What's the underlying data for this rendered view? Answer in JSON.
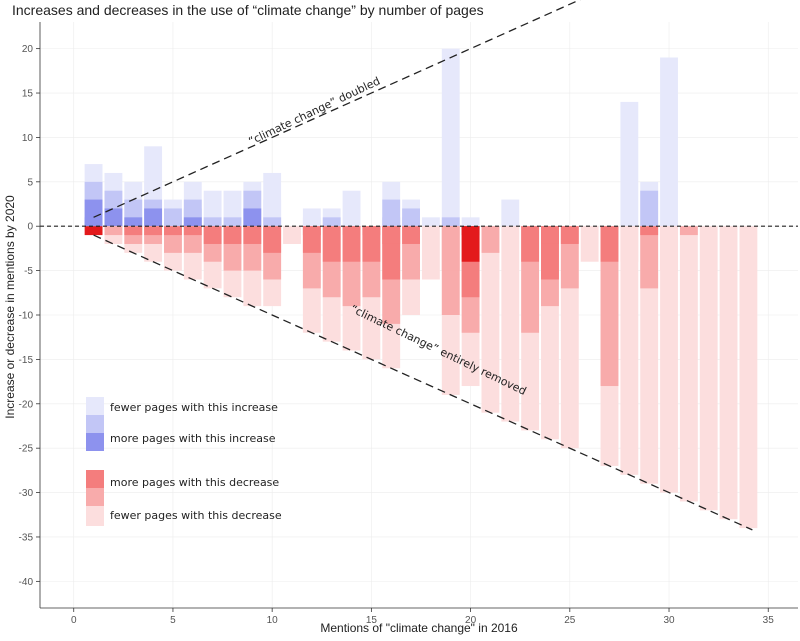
{
  "chart_data": {
    "type": "bar",
    "title": "Increases and decreases in the use of “climate change” by number of pages",
    "xlabel": "Mentions of \"climate change\" in 2016",
    "ylabel": "Increase or decrease in mentions by 2020",
    "xlim": [
      -1.7,
      36.5
    ],
    "ylim": [
      -43,
      23
    ],
    "x_ticks": [
      0,
      5,
      10,
      15,
      20,
      25,
      30,
      35
    ],
    "y_ticks": [
      20,
      15,
      10,
      5,
      0,
      -5,
      -10,
      -15,
      -20,
      -25,
      -30,
      -35,
      -40
    ],
    "colors": {
      "increase_light": "#e6e8fb",
      "increase_mid": "#c2c6f6",
      "increase_dark": "#8d92ee",
      "decrease_dark": "#f47d7d",
      "decrease_mid": "#f8abab",
      "decrease_light": "#fcdede",
      "first_decrease": "#e31a1c",
      "grid": "#ececec"
    },
    "increase_bars": [
      {
        "x": 1,
        "levels": [
          {
            "v": 7,
            "s": 0
          },
          {
            "v": 5,
            "s": 1
          },
          {
            "v": 3,
            "s": 2
          },
          {
            "v": 1,
            "s": 2
          }
        ]
      },
      {
        "x": 2,
        "levels": [
          {
            "v": 6,
            "s": 0
          },
          {
            "v": 4,
            "s": 1
          },
          {
            "v": 2,
            "s": 2
          }
        ]
      },
      {
        "x": 3,
        "levels": [
          {
            "v": 5,
            "s": 0
          },
          {
            "v": 3,
            "s": 1
          },
          {
            "v": 1,
            "s": 2
          }
        ]
      },
      {
        "x": 4,
        "levels": [
          {
            "v": 9,
            "s": 0
          },
          {
            "v": 5,
            "s": 0
          },
          {
            "v": 3,
            "s": 1
          },
          {
            "v": 2,
            "s": 2
          }
        ]
      },
      {
        "x": 5,
        "levels": [
          {
            "v": 3,
            "s": 0
          },
          {
            "v": 2,
            "s": 1
          },
          {
            "v": 1,
            "s": 1
          }
        ]
      },
      {
        "x": 6,
        "levels": [
          {
            "v": 5,
            "s": 0
          },
          {
            "v": 3,
            "s": 1
          },
          {
            "v": 2,
            "s": 1
          },
          {
            "v": 1,
            "s": 2
          }
        ]
      },
      {
        "x": 7,
        "levels": [
          {
            "v": 4,
            "s": 0
          },
          {
            "v": 1,
            "s": 1
          }
        ]
      },
      {
        "x": 8,
        "levels": [
          {
            "v": 4,
            "s": 0
          },
          {
            "v": 1,
            "s": 1
          }
        ]
      },
      {
        "x": 9,
        "levels": [
          {
            "v": 5,
            "s": 0
          },
          {
            "v": 4,
            "s": 1
          },
          {
            "v": 2,
            "s": 2
          }
        ]
      },
      {
        "x": 10,
        "levels": [
          {
            "v": 6,
            "s": 0
          },
          {
            "v": 3,
            "s": 0
          },
          {
            "v": 1,
            "s": 1
          }
        ]
      },
      {
        "x": 12,
        "levels": [
          {
            "v": 2,
            "s": 0
          },
          {
            "v": 1,
            "s": 0
          }
        ]
      },
      {
        "x": 13,
        "levels": [
          {
            "v": 2,
            "s": 0
          },
          {
            "v": 1,
            "s": 1
          }
        ]
      },
      {
        "x": 14,
        "levels": [
          {
            "v": 4,
            "s": 0
          }
        ]
      },
      {
        "x": 16,
        "levels": [
          {
            "v": 5,
            "s": 0
          },
          {
            "v": 3,
            "s": 1
          },
          {
            "v": 1,
            "s": 1
          }
        ]
      },
      {
        "x": 17,
        "levels": [
          {
            "v": 3,
            "s": 0
          },
          {
            "v": 2,
            "s": 1
          },
          {
            "v": 1,
            "s": 1
          }
        ]
      },
      {
        "x": 18,
        "levels": [
          {
            "v": 1,
            "s": 0
          }
        ]
      },
      {
        "x": 19,
        "levels": [
          {
            "v": 20,
            "s": 0
          },
          {
            "v": 1,
            "s": 1
          }
        ]
      },
      {
        "x": 20,
        "levels": [
          {
            "v": 1,
            "s": 0
          }
        ]
      },
      {
        "x": 22,
        "levels": [
          {
            "v": 3,
            "s": 0
          }
        ]
      },
      {
        "x": 28,
        "levels": [
          {
            "v": 14,
            "s": 0
          }
        ]
      },
      {
        "x": 29,
        "levels": [
          {
            "v": 5,
            "s": 0
          },
          {
            "v": 4,
            "s": 1
          }
        ]
      },
      {
        "x": 30,
        "levels": [
          {
            "v": 19,
            "s": 0
          }
        ]
      }
    ],
    "decrease_bars": [
      {
        "x": 1,
        "levels": [
          {
            "v": -1,
            "s": 3
          }
        ]
      },
      {
        "x": 2,
        "levels": [
          {
            "v": -2,
            "s": 0
          },
          {
            "v": -1,
            "s": 1
          }
        ]
      },
      {
        "x": 3,
        "levels": [
          {
            "v": -3,
            "s": 0
          },
          {
            "v": -2,
            "s": 1
          },
          {
            "v": -1,
            "s": 2
          }
        ]
      },
      {
        "x": 4,
        "levels": [
          {
            "v": -4,
            "s": 0
          },
          {
            "v": -2,
            "s": 1
          },
          {
            "v": -1,
            "s": 2
          }
        ]
      },
      {
        "x": 5,
        "levels": [
          {
            "v": -5,
            "s": 0
          },
          {
            "v": -3,
            "s": 1
          },
          {
            "v": -1,
            "s": 2
          }
        ]
      },
      {
        "x": 6,
        "levels": [
          {
            "v": -6,
            "s": 0
          },
          {
            "v": -3,
            "s": 1
          },
          {
            "v": -1,
            "s": 2
          }
        ]
      },
      {
        "x": 7,
        "levels": [
          {
            "v": -7,
            "s": 0
          },
          {
            "v": -4,
            "s": 1
          },
          {
            "v": -2,
            "s": 2
          }
        ]
      },
      {
        "x": 8,
        "levels": [
          {
            "v": -8,
            "s": 0
          },
          {
            "v": -5,
            "s": 1
          },
          {
            "v": -2,
            "s": 2
          }
        ]
      },
      {
        "x": 9,
        "levels": [
          {
            "v": -9,
            "s": 0
          },
          {
            "v": -5,
            "s": 1
          },
          {
            "v": -2,
            "s": 2
          }
        ]
      },
      {
        "x": 10,
        "levels": [
          {
            "v": -9,
            "s": 0
          },
          {
            "v": -6,
            "s": 1
          },
          {
            "v": -3,
            "s": 2
          }
        ]
      },
      {
        "x": 11,
        "levels": [
          {
            "v": -2,
            "s": 0
          }
        ]
      },
      {
        "x": 12,
        "levels": [
          {
            "v": -12,
            "s": 0
          },
          {
            "v": -7,
            "s": 1
          },
          {
            "v": -3,
            "s": 2
          },
          {
            "v": -1,
            "s": 2
          }
        ]
      },
      {
        "x": 13,
        "levels": [
          {
            "v": -13,
            "s": 0
          },
          {
            "v": -8,
            "s": 1
          },
          {
            "v": -4,
            "s": 2
          }
        ]
      },
      {
        "x": 14,
        "levels": [
          {
            "v": -14,
            "s": 0
          },
          {
            "v": -9,
            "s": 1
          },
          {
            "v": -4,
            "s": 2
          },
          {
            "v": -1,
            "s": 2
          }
        ]
      },
      {
        "x": 15,
        "levels": [
          {
            "v": -15,
            "s": 0
          },
          {
            "v": -8,
            "s": 1
          },
          {
            "v": -4,
            "s": 2
          },
          {
            "v": -1,
            "s": 2
          }
        ]
      },
      {
        "x": 16,
        "levels": [
          {
            "v": -16,
            "s": 0
          },
          {
            "v": -11,
            "s": 1
          },
          {
            "v": -6,
            "s": 2
          },
          {
            "v": -2,
            "s": 2
          }
        ]
      },
      {
        "x": 17,
        "levels": [
          {
            "v": -10,
            "s": 0
          },
          {
            "v": -6,
            "s": 1
          },
          {
            "v": -2,
            "s": 2
          }
        ]
      },
      {
        "x": 18,
        "levels": [
          {
            "v": -6,
            "s": 0
          }
        ]
      },
      {
        "x": 19,
        "levels": [
          {
            "v": -19,
            "s": 0
          },
          {
            "v": -10,
            "s": 1
          },
          {
            "v": -5,
            "s": 1
          }
        ]
      },
      {
        "x": 20,
        "levels": [
          {
            "v": -18,
            "s": 0
          },
          {
            "v": -12,
            "s": 1
          },
          {
            "v": -8,
            "s": 2
          },
          {
            "v": -4,
            "s": 3
          },
          {
            "v": -1,
            "s": 3
          }
        ]
      },
      {
        "x": 21,
        "levels": [
          {
            "v": -21,
            "s": 0
          },
          {
            "v": -6,
            "s": 0
          },
          {
            "v": -3,
            "s": 1
          }
        ]
      },
      {
        "x": 22,
        "levels": [
          {
            "v": -22,
            "s": 0
          }
        ]
      },
      {
        "x": 23,
        "levels": [
          {
            "v": -23,
            "s": 0
          },
          {
            "v": -12,
            "s": 1
          },
          {
            "v": -4,
            "s": 2
          }
        ]
      },
      {
        "x": 24,
        "levels": [
          {
            "v": -24,
            "s": 0
          },
          {
            "v": -9,
            "s": 1
          },
          {
            "v": -6,
            "s": 2
          },
          {
            "v": -2,
            "s": 2
          }
        ]
      },
      {
        "x": 25,
        "levels": [
          {
            "v": -25,
            "s": 0
          },
          {
            "v": -7,
            "s": 1
          },
          {
            "v": -2,
            "s": 2
          }
        ]
      },
      {
        "x": 26,
        "levels": [
          {
            "v": -4,
            "s": 0
          }
        ]
      },
      {
        "x": 27,
        "levels": [
          {
            "v": -27,
            "s": 0
          },
          {
            "v": -18,
            "s": 1
          },
          {
            "v": -4,
            "s": 2
          }
        ]
      },
      {
        "x": 28,
        "levels": [
          {
            "v": -28,
            "s": 0
          },
          {
            "v": -4,
            "s": 0
          }
        ]
      },
      {
        "x": 29,
        "levels": [
          {
            "v": -29,
            "s": 0
          },
          {
            "v": -7,
            "s": 1
          },
          {
            "v": -1,
            "s": 2
          }
        ]
      },
      {
        "x": 30,
        "levels": [
          {
            "v": -30,
            "s": 0
          },
          {
            "v": -5,
            "s": 0
          }
        ]
      },
      {
        "x": 31,
        "levels": [
          {
            "v": -31,
            "s": 0
          },
          {
            "v": -1,
            "s": 1
          }
        ]
      },
      {
        "x": 32,
        "levels": [
          {
            "v": -32,
            "s": 0
          }
        ]
      },
      {
        "x": 33,
        "levels": [
          {
            "v": -33,
            "s": 0
          }
        ]
      },
      {
        "x": 34,
        "levels": [
          {
            "v": -34,
            "s": 0
          }
        ]
      }
    ],
    "reference_lines": {
      "zero": 0,
      "doubled": {
        "from": [
          1,
          1
        ],
        "to": [
          26.4,
          26.4
        ]
      },
      "removed": {
        "from": [
          1,
          -1
        ],
        "to": [
          34.2,
          -34.2
        ]
      }
    },
    "annotations": [
      {
        "id": "doubled",
        "text": "“climate change” doubled",
        "x": 12.2,
        "y": 12.6,
        "angle": -25.4
      },
      {
        "id": "removed",
        "text": "“climate change” entirely removed",
        "x": 18.3,
        "y": -14.3,
        "angle": 25.7
      }
    ],
    "legend": {
      "placement": "bottom-left",
      "entries": [
        {
          "label": "fewer pages with this increase",
          "swatches": [
            "increase_light",
            "increase_mid"
          ]
        },
        {
          "label": "more pages with this increase",
          "swatches": [
            "increase_dark"
          ]
        },
        {
          "label": "more pages with this decrease",
          "swatches": [
            "decrease_dark",
            "decrease_mid"
          ]
        },
        {
          "label": "fewer pages with this decrease",
          "swatches": [
            "decrease_light"
          ]
        }
      ]
    }
  }
}
